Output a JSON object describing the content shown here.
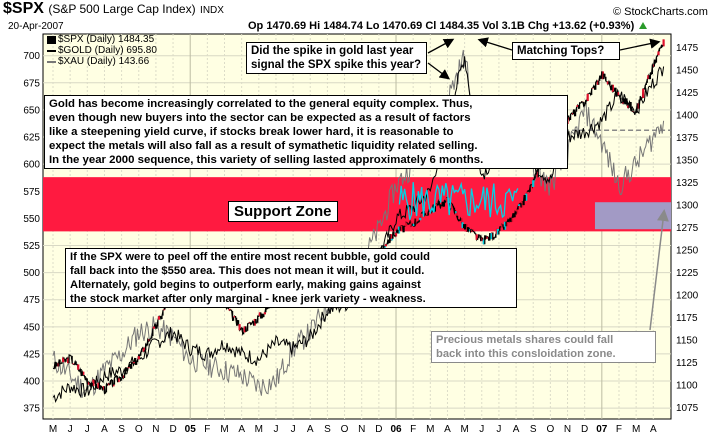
{
  "header": {
    "symbol": "$SPX",
    "name": "(S&P 500 Large Cap Index)",
    "exchange": "INDX",
    "date": "20-Apr-2007",
    "ohlc": "Op 1470.69  Hi 1484.74  Lo 1470.69  Cl 1484.35  Vol 3.1B  Chg +13.62 (+0.93%)",
    "chg_icon": "up-triangle-icon",
    "watermark": "© StockCharts.com"
  },
  "legend": [
    {
      "label": "$SPX (Daily) 1484.35",
      "color": "#000000"
    },
    {
      "label": "$GOLD (Daily) 695.80",
      "color": "#000000"
    },
    {
      "label": "$XAU (Daily) 143.66",
      "color": "#777777"
    }
  ],
  "annotations": {
    "gold_spike": "Did the spike in gold last year\nsignal the SPX spike this year?",
    "matching_tops": "Matching Tops?",
    "correlation": "Gold has become increasingly correlated to the general equity complex. Thus,\neven though new buyers into the sector can be expected as a result of factors\nlike a steepening yield curve, if stocks break lower hard, it is reasonable to\nexpect the metals will also fall as a result of symathetic liquidity related selling.\nIn the year 2000 sequence, this variety of selling lasted approximately 6 months.",
    "support_zone": "Support Zone",
    "bubble": "If the SPX were to peel off the entire most recent bubble, gold could\nfall back into the $550 area. This does not mean it will, but it could.\nAlternately, gold begins to outperform early, making gains against\nthe stock market after only marginal - knee jerk variety - weakness.",
    "xau_zone": "Precious metals shares could fall\nback into this consloidation zone."
  },
  "chart_data": {
    "type": "line",
    "title": "$SPX (S&P 500 Large Cap Index) INDX",
    "x_labels": [
      "M",
      "J",
      "J",
      "A",
      "S",
      "O",
      "N",
      "D",
      "05",
      "F",
      "M",
      "A",
      "M",
      "J",
      "J",
      "A",
      "S",
      "O",
      "N",
      "D",
      "06",
      "F",
      "M",
      "A",
      "M",
      "J",
      "J",
      "A",
      "S",
      "O",
      "N",
      "D",
      "07",
      "F",
      "M",
      "A"
    ],
    "left_axis": {
      "ticks": [
        375,
        400,
        425,
        450,
        475,
        500,
        525,
        550,
        575,
        600,
        625,
        650,
        675,
        700
      ],
      "range": [
        365,
        720
      ]
    },
    "right_axis": {
      "ticks": [
        1075,
        1100,
        1125,
        1150,
        1175,
        1200,
        1225,
        1250,
        1275,
        1300,
        1325,
        1350,
        1375,
        1400,
        1425,
        1450,
        1475
      ],
      "range": [
        1062,
        1490
      ]
    },
    "gridlines": true,
    "zones": [
      {
        "name": "Support Zone",
        "axis": "left",
        "from": 538,
        "to": 588,
        "color": "#ff1a40"
      },
      {
        "name": "XAU consolidation zone",
        "axis": "right",
        "from": 1273,
        "to": 1303,
        "color": "#9da1cc"
      }
    ],
    "reference_line": {
      "axis": "right",
      "value": 1383,
      "color": "#888888",
      "style": "dashed"
    },
    "series": [
      {
        "name": "$SPX",
        "axis": "right",
        "color": "#000000",
        "months": [
          0,
          1,
          2,
          3,
          4,
          5,
          6,
          7,
          8,
          9,
          10,
          11,
          12,
          13,
          14,
          15,
          16,
          17,
          18,
          19,
          20,
          21,
          22,
          23,
          24,
          25,
          26,
          27,
          28,
          29,
          30,
          31,
          32,
          33,
          34,
          35.6
        ],
        "values": [
          1120,
          1130,
          1105,
          1095,
          1110,
          1130,
          1165,
          1205,
          1190,
          1205,
          1190,
          1160,
          1175,
          1195,
          1225,
          1215,
          1225,
          1195,
          1215,
          1250,
          1270,
          1280,
          1295,
          1305,
          1275,
          1260,
          1270,
          1290,
          1325,
          1370,
          1395,
          1415,
          1445,
          1420,
          1405,
          1484
        ]
      },
      {
        "name": "$GOLD",
        "axis": "left",
        "color": "#000000",
        "months": [
          0,
          1,
          2,
          3,
          4,
          5,
          6,
          7,
          8,
          9,
          10,
          11,
          12,
          13,
          14,
          15,
          16,
          17,
          18,
          19,
          20,
          21,
          22,
          23,
          24,
          25,
          26,
          27,
          28,
          29,
          30,
          31,
          32,
          33,
          34,
          35.6
        ],
        "values": [
          385,
          395,
          390,
          405,
          410,
          420,
          435,
          445,
          430,
          425,
          435,
          425,
          420,
          435,
          430,
          440,
          465,
          470,
          480,
          515,
          550,
          560,
          575,
          640,
          700,
          590,
          610,
          640,
          600,
          585,
          625,
          630,
          640,
          665,
          650,
          690
        ]
      },
      {
        "name": "$XAU",
        "axis": "left",
        "color": "#777777",
        "months": [
          0,
          1,
          2,
          3,
          4,
          5,
          6,
          7,
          8,
          9,
          10,
          11,
          12,
          13,
          14,
          15,
          16,
          17,
          18,
          19,
          20,
          21,
          22,
          23,
          24,
          25,
          26,
          27,
          28,
          29,
          30,
          31,
          32,
          33,
          34,
          35.6
        ],
        "values": [
          420,
          405,
          390,
          410,
          425,
          445,
          450,
          440,
          420,
          415,
          410,
          405,
          395,
          400,
          430,
          445,
          470,
          495,
          510,
          540,
          580,
          600,
          640,
          660,
          700,
          600,
          630,
          660,
          595,
          580,
          610,
          650,
          620,
          580,
          600,
          640
        ]
      }
    ]
  }
}
